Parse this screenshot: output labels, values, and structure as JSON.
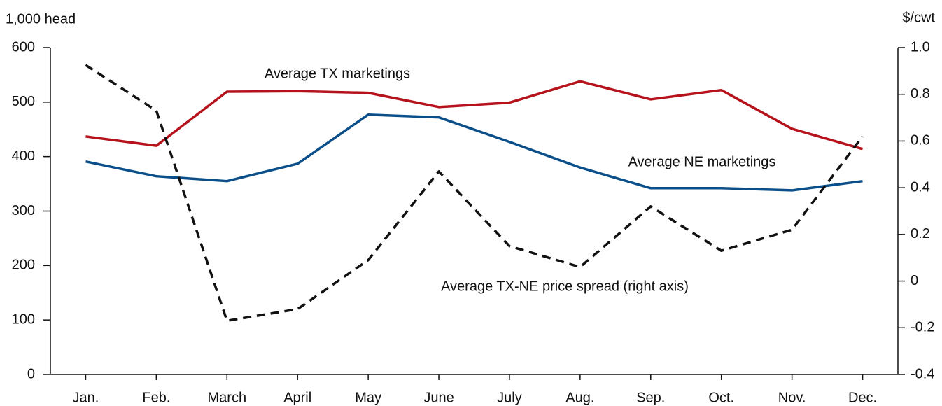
{
  "chart_data": {
    "type": "line",
    "y_label": "1,000 head",
    "y2_label": "$/cwt",
    "categories": [
      "Jan.",
      "Feb.",
      "March",
      "April",
      "May",
      "June",
      "July",
      "Aug.",
      "Sep.",
      "Oct.",
      "Nov.",
      "Dec."
    ],
    "series": [
      {
        "name": "Average TX marketings",
        "color": "#b5121b",
        "values": [
          437,
          420,
          519,
          520,
          517,
          491,
          499,
          538,
          505,
          522,
          451,
          414
        ]
      },
      {
        "name": "Average NE marketings",
        "color": "#0b4f8a",
        "values": [
          391,
          364,
          355,
          387,
          477,
          472,
          427,
          380,
          342,
          342,
          338,
          355
        ]
      },
      {
        "name": "Average TX-NE price spread (right axis)",
        "color": "#111111",
        "dashed": true,
        "axis": "y2",
        "values": [
          0.925,
          0.73,
          -0.17,
          -0.12,
          0.09,
          0.47,
          0.15,
          0.06,
          0.32,
          0.13,
          0.22,
          0.62
        ]
      }
    ],
    "ylim": [
      0,
      600
    ],
    "yticks": [
      0,
      100,
      200,
      300,
      400,
      500,
      600
    ],
    "y2lim": [
      -0.4,
      1.0
    ],
    "y2ticks": [
      -0.4,
      -0.2,
      0,
      0.2,
      0.4,
      0.6,
      0.8,
      {
        "value": 1.0,
        "label": "1.0"
      }
    ],
    "grid": false
  }
}
